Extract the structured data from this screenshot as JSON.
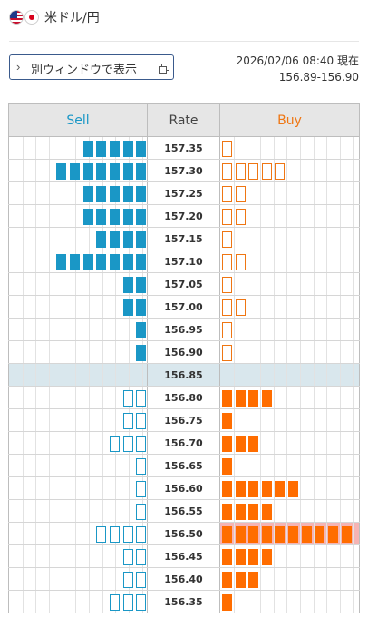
{
  "header": {
    "flag_left": "us-flag-icon",
    "flag_right": "jp-flag-icon",
    "pair_title": "米ドル/円"
  },
  "window_button": {
    "label": "別ウィンドウで表示",
    "chevron_icon": "chevron-right-icon",
    "external_icon": "open-window-icon"
  },
  "quote": {
    "timestamp": "2026/02/06 08:40 現在",
    "range": "156.89-156.90"
  },
  "board": {
    "headers": {
      "sell": "Sell",
      "rate": "Rate",
      "buy": "Buy"
    },
    "colors": {
      "sell": "#1a97c6",
      "buy": "#ff6d00",
      "current_row": "#d9e7ed",
      "highlight": "#f5b4b4",
      "header_bg": "#e6e6e6"
    },
    "current_rate": "156.85",
    "highlight_buy_rate": "156.50",
    "rows": [
      {
        "rate": "157.35",
        "sell_filled": 5,
        "sell_hollow": 0,
        "buy_filled": 0,
        "buy_hollow": 1
      },
      {
        "rate": "157.30",
        "sell_filled": 7,
        "sell_hollow": 0,
        "buy_filled": 0,
        "buy_hollow": 5
      },
      {
        "rate": "157.25",
        "sell_filled": 5,
        "sell_hollow": 0,
        "buy_filled": 0,
        "buy_hollow": 2
      },
      {
        "rate": "157.20",
        "sell_filled": 5,
        "sell_hollow": 0,
        "buy_filled": 0,
        "buy_hollow": 2
      },
      {
        "rate": "157.15",
        "sell_filled": 4,
        "sell_hollow": 0,
        "buy_filled": 0,
        "buy_hollow": 1
      },
      {
        "rate": "157.10",
        "sell_filled": 7,
        "sell_hollow": 0,
        "buy_filled": 0,
        "buy_hollow": 2
      },
      {
        "rate": "157.05",
        "sell_filled": 2,
        "sell_hollow": 0,
        "buy_filled": 0,
        "buy_hollow": 1
      },
      {
        "rate": "157.00",
        "sell_filled": 2,
        "sell_hollow": 0,
        "buy_filled": 0,
        "buy_hollow": 2
      },
      {
        "rate": "156.95",
        "sell_filled": 1,
        "sell_hollow": 0,
        "buy_filled": 0,
        "buy_hollow": 1
      },
      {
        "rate": "156.90",
        "sell_filled": 1,
        "sell_hollow": 0,
        "buy_filled": 0,
        "buy_hollow": 1
      },
      {
        "rate": "156.85",
        "sell_filled": 0,
        "sell_hollow": 0,
        "buy_filled": 0,
        "buy_hollow": 0
      },
      {
        "rate": "156.80",
        "sell_filled": 0,
        "sell_hollow": 2,
        "buy_filled": 4,
        "buy_hollow": 0
      },
      {
        "rate": "156.75",
        "sell_filled": 0,
        "sell_hollow": 2,
        "buy_filled": 1,
        "buy_hollow": 0
      },
      {
        "rate": "156.70",
        "sell_filled": 0,
        "sell_hollow": 3,
        "buy_filled": 3,
        "buy_hollow": 0
      },
      {
        "rate": "156.65",
        "sell_filled": 0,
        "sell_hollow": 1,
        "buy_filled": 1,
        "buy_hollow": 0
      },
      {
        "rate": "156.60",
        "sell_filled": 0,
        "sell_hollow": 1,
        "buy_filled": 6,
        "buy_hollow": 0
      },
      {
        "rate": "156.55",
        "sell_filled": 0,
        "sell_hollow": 1,
        "buy_filled": 4,
        "buy_hollow": 0
      },
      {
        "rate": "156.50",
        "sell_filled": 0,
        "sell_hollow": 4,
        "buy_filled": 10,
        "buy_hollow": 0
      },
      {
        "rate": "156.45",
        "sell_filled": 0,
        "sell_hollow": 2,
        "buy_filled": 4,
        "buy_hollow": 0
      },
      {
        "rate": "156.40",
        "sell_filled": 0,
        "sell_hollow": 2,
        "buy_filled": 3,
        "buy_hollow": 0
      },
      {
        "rate": "156.35",
        "sell_filled": 0,
        "sell_hollow": 3,
        "buy_filled": 1,
        "buy_hollow": 0
      }
    ]
  }
}
